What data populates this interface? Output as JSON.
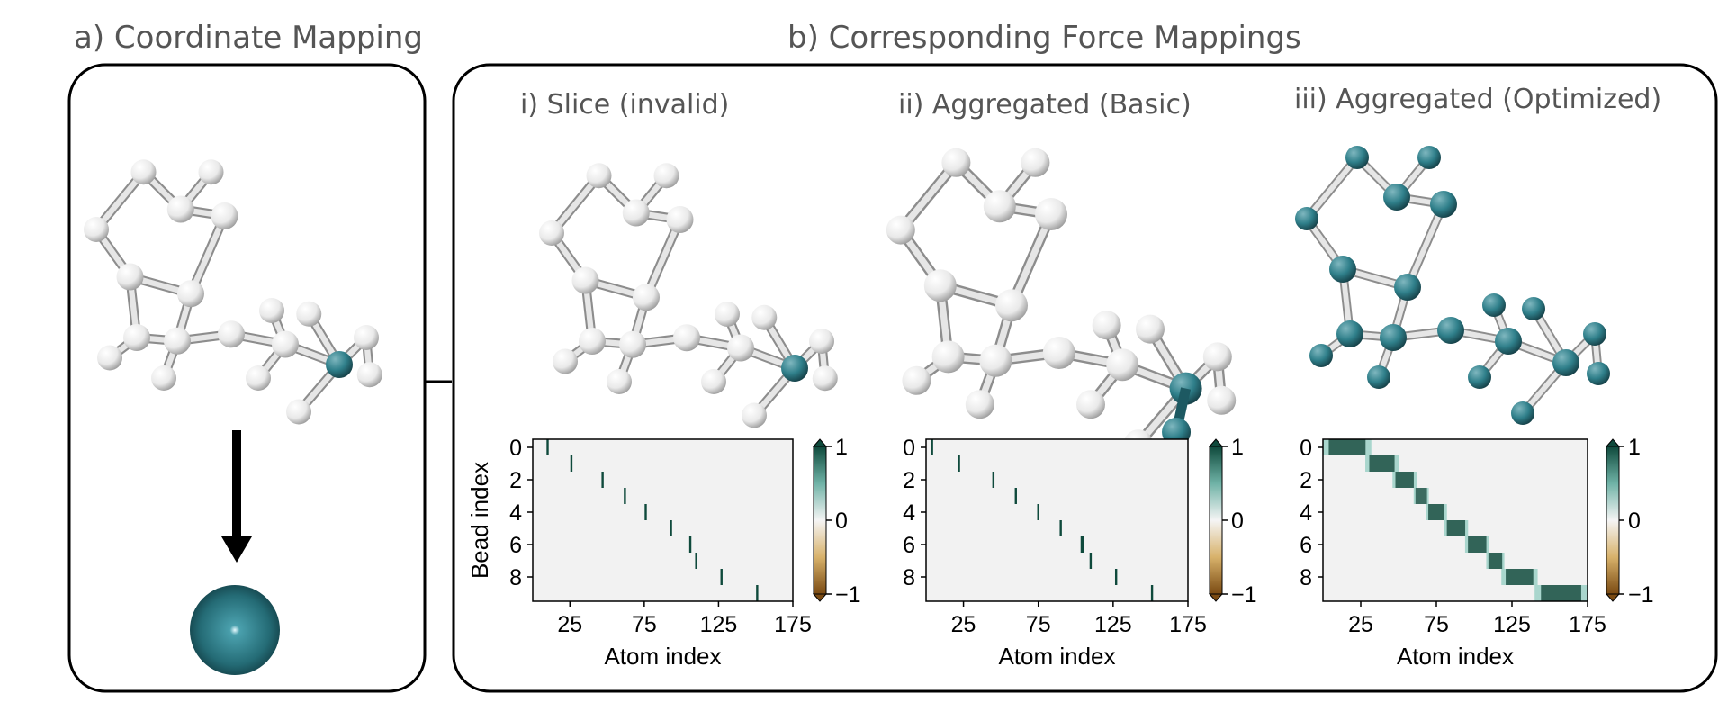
{
  "panel_a": {
    "title": "a) Coordinate Mapping"
  },
  "panel_b": {
    "title": "b) Corresponding Force Mappings",
    "subpanels": [
      {
        "title": "i) Slice (invalid)"
      },
      {
        "title": "ii) Aggregated (Basic)"
      },
      {
        "title": "iii) Aggregated (Optimized)"
      }
    ]
  },
  "colors": {
    "atom_white": "#e9e9e9",
    "atom_teal": "#2f7f8a",
    "atom_teal_dark": "#1d5962",
    "bond": "#cfcfcf",
    "heatmap_bg": "#f2f2f2",
    "cmap_pos": "#0f4a3c",
    "cmap_neg": "#7a4a12"
  },
  "chart_data": [
    {
      "type": "heatmap",
      "title": "i) Slice (invalid)",
      "xlabel": "Atom index",
      "ylabel": "Bead index",
      "xticks": [
        "25",
        "75",
        "125",
        "175"
      ],
      "yticks": [
        "0",
        "2",
        "4",
        "6",
        "8"
      ],
      "xlim": [
        0,
        175
      ],
      "ylim": [
        9.5,
        -0.5
      ],
      "colorbar": {
        "ticks": [
          "1",
          "0",
          "−1"
        ],
        "range": [
          -1,
          1
        ]
      },
      "cells": [
        {
          "bead": 0,
          "atom": 10,
          "value": 1
        },
        {
          "bead": 1,
          "atom": 26,
          "value": 1
        },
        {
          "bead": 2,
          "atom": 47,
          "value": 1
        },
        {
          "bead": 3,
          "atom": 62,
          "value": 1
        },
        {
          "bead": 4,
          "atom": 76,
          "value": 1
        },
        {
          "bead": 5,
          "atom": 93,
          "value": 1
        },
        {
          "bead": 6,
          "atom": 106,
          "value": 1
        },
        {
          "bead": 7,
          "atom": 110,
          "value": 1
        },
        {
          "bead": 8,
          "atom": 127,
          "value": 1
        },
        {
          "bead": 9,
          "atom": 151,
          "value": 1
        }
      ]
    },
    {
      "type": "heatmap",
      "title": "ii) Aggregated (Basic)",
      "xlabel": "Atom index",
      "ylabel": "",
      "xticks": [
        "25",
        "75",
        "125",
        "175"
      ],
      "yticks": [
        "0",
        "2",
        "4",
        "6",
        "8"
      ],
      "xlim": [
        0,
        175
      ],
      "ylim": [
        9.5,
        -0.5
      ],
      "colorbar": {
        "ticks": [
          "1",
          "0",
          "−1"
        ],
        "range": [
          -1,
          1
        ]
      },
      "cells": [
        {
          "bead": 0,
          "atom": 4,
          "value": 1
        },
        {
          "bead": 1,
          "atom": 22,
          "value": 1
        },
        {
          "bead": 2,
          "atom": 45,
          "value": 1
        },
        {
          "bead": 3,
          "atom": 60,
          "value": 1
        },
        {
          "bead": 4,
          "atom": 75,
          "value": 1
        },
        {
          "bead": 5,
          "atom": 90,
          "value": 1
        },
        {
          "bead": 6,
          "atom": 104,
          "value": 1
        },
        {
          "bead": 6,
          "atom": 105,
          "value": 1
        },
        {
          "bead": 7,
          "atom": 110,
          "value": 1
        },
        {
          "bead": 8,
          "atom": 127,
          "value": 1
        },
        {
          "bead": 9,
          "atom": 151,
          "value": 1
        }
      ]
    },
    {
      "type": "heatmap",
      "title": "iii) Aggregated (Optimized)",
      "xlabel": "Atom index",
      "ylabel": "",
      "xticks": [
        "25",
        "75",
        "125",
        "175"
      ],
      "yticks": [
        "0",
        "2",
        "4",
        "6",
        "8"
      ],
      "xlim": [
        0,
        175
      ],
      "ylim": [
        9.5,
        -0.5
      ],
      "colorbar": {
        "ticks": [
          "1",
          "0",
          "−1"
        ],
        "range": [
          -1,
          1
        ]
      },
      "bands": [
        {
          "bead": 0,
          "atom_start": 0,
          "atom_end": 32,
          "value": 0.85
        },
        {
          "bead": 1,
          "atom_start": 28,
          "atom_end": 50,
          "value": 0.85
        },
        {
          "bead": 2,
          "atom_start": 46,
          "atom_end": 62,
          "value": 0.85
        },
        {
          "bead": 3,
          "atom_start": 60,
          "atom_end": 70,
          "value": 0.8
        },
        {
          "bead": 4,
          "atom_start": 68,
          "atom_end": 82,
          "value": 0.85
        },
        {
          "bead": 5,
          "atom_start": 80,
          "atom_end": 96,
          "value": 0.85
        },
        {
          "bead": 6,
          "atom_start": 94,
          "atom_end": 110,
          "value": 0.85
        },
        {
          "bead": 7,
          "atom_start": 108,
          "atom_end": 120,
          "value": 0.85
        },
        {
          "bead": 8,
          "atom_start": 118,
          "atom_end": 142,
          "value": 0.85
        },
        {
          "bead": 9,
          "atom_start": 140,
          "atom_end": 175,
          "value": 0.85
        }
      ]
    }
  ]
}
